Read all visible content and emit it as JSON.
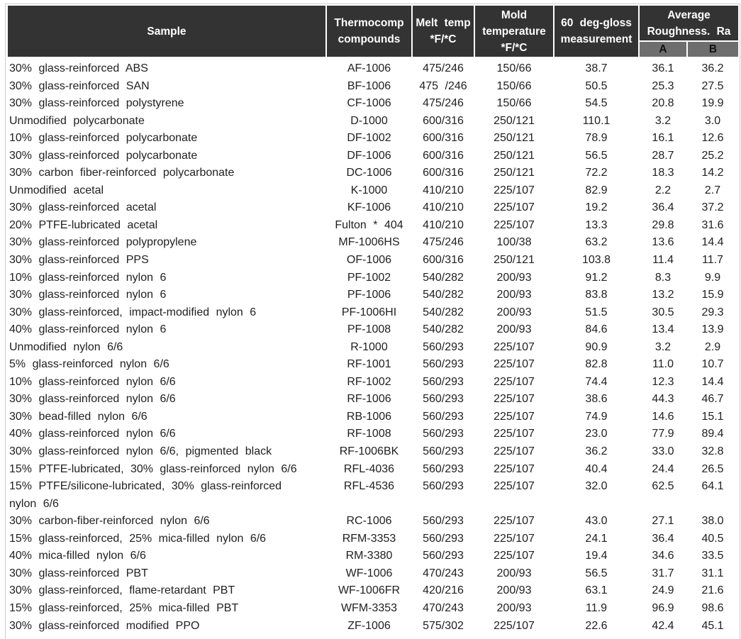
{
  "colors": {
    "header_bg": "#333333",
    "header_text": "#ffffff",
    "subheader_bg": "#6e6e6e",
    "subheader_text": "#111111",
    "body_text": "#212121",
    "table_border": "#cccccc"
  },
  "table": {
    "headers": {
      "sample": "Sample",
      "thermocomp": "Thermocomp\ncompounds",
      "melt_temp": "Melt temp\n*F/*C",
      "mold_temp": "Mold\ntemperature\n*F/*C",
      "gloss": "60 deg-gloss\nmeasurement",
      "roughness": "Average\nRoughness. Ra",
      "roughness_a": "A",
      "roughness_b": "B"
    },
    "rows": [
      [
        "30% glass-reinforced ABS",
        "AF-1006",
        "475/246",
        "150/66",
        "38.7",
        "36.1",
        "36.2"
      ],
      [
        "30% glass-reinforced SAN",
        "BF-1006",
        "475 /246",
        "150/66",
        "50.5",
        "25.3",
        "27.5"
      ],
      [
        "30% glass-reinforced polystyrene",
        "CF-1006",
        "475/246",
        "150/66",
        "54.5",
        "20.8",
        "19.9"
      ],
      [
        "Unmodified polycarbonate",
        "D-1000",
        "600/316",
        "250/121",
        "110.1",
        "3.2",
        "3.0"
      ],
      [
        "10% glass-reinforced polycarbonate",
        "DF-1002",
        "600/316",
        "250/121",
        "78.9",
        "16.1",
        "12.6"
      ],
      [
        "30% glass-reinforced polycarbonate",
        "DF-1006",
        "600/316",
        "250/121",
        "56.5",
        "28.7",
        "25.2"
      ],
      [
        "30% carbon fiber-reinforced polycarbonate",
        "DC-1006",
        "600/316",
        "250/121",
        "72.2",
        "18.3",
        "14.2"
      ],
      [
        "Unmodified acetal",
        "K-1000",
        "410/210",
        "225/107",
        "82.9",
        "2.2",
        "2.7"
      ],
      [
        "30% glass-reinforced acetal",
        "KF-1006",
        "410/210",
        "225/107",
        "19.2",
        "36.4",
        "37.2"
      ],
      [
        "20% PTFE-lubricated acetal",
        "Fulton * 404",
        "410/210",
        "225/107",
        "13.3",
        "29.8",
        "31.6"
      ],
      [
        "30% glass-reinforced polypropylene",
        "MF-1006HS",
        "475/246",
        "100/38",
        "63.2",
        "13.6",
        "14.4"
      ],
      [
        "30% glass-reinforced PPS",
        "OF-1006",
        "600/316",
        "250/121",
        "103.8",
        "11.4",
        "11.7"
      ],
      [
        "10% glass-reinforced nylon 6",
        "PF-1002",
        "540/282",
        "200/93",
        "91.2",
        "8.3",
        "9.9"
      ],
      [
        "30% glass-reinforced nylon 6",
        "PF-1006",
        "540/282",
        "200/93",
        "83.8",
        "13.2",
        "15.9"
      ],
      [
        "30% glass-reinforced, impact-modified nylon 6",
        "PF-1006HI",
        "540/282",
        "200/93",
        "51.5",
        "30.5",
        "29.3"
      ],
      [
        "40% glass-reinforced nylon 6",
        "PF-1008",
        "540/282",
        "200/93",
        "84.6",
        "13.4",
        "13.9"
      ],
      [
        "Unmodified nylon 6/6",
        "R-1000",
        "560/293",
        "225/107",
        "90.9",
        "3.2",
        "2.9"
      ],
      [
        "5% glass-reinforced nylon 6/6",
        "RF-1001",
        "560/293",
        "225/107",
        "82.8",
        "11.0",
        "10.7"
      ],
      [
        "10% glass-reinforced nylon 6/6",
        "RF-1002",
        "560/293",
        "225/107",
        "74.4",
        "12.3",
        "14.4"
      ],
      [
        "30% glass-reinforced nylon 6/6",
        "RF-1006",
        "560/293",
        "225/107",
        "38.6",
        "44.3",
        "46.7"
      ],
      [
        "30% bead-filled nylon 6/6",
        "RB-1006",
        "560/293",
        "225/107",
        "74.9",
        "14.6",
        "15.1"
      ],
      [
        "40% glass-reinforced nylon 6/6",
        "RF-1008",
        "560/293",
        "225/107",
        "23.0",
        "77.9",
        "89.4"
      ],
      [
        "30% glass-reinforced nylon 6/6, pigmented black",
        "RF-1006BK",
        "560/293",
        "225/107",
        "36.2",
        "33.0",
        "32.8"
      ],
      [
        "15% PTFE-lubricated, 30% glass-reinforced nylon 6/6",
        "RFL-4036",
        "560/293",
        "225/107",
        "40.4",
        "24.4",
        "26.5"
      ],
      [
        "15% PTFE/silicone-lubricated, 30% glass-reinforced\nnylon 6/6",
        "RFL-4536",
        "560/293",
        "225/107",
        "32.0",
        "62.5",
        "64.1"
      ],
      [
        "30% carbon-fiber-reinforced nylon 6/6",
        "RC-1006",
        "560/293",
        "225/107",
        "43.0",
        "27.1",
        "38.0"
      ],
      [
        "15% glass-reinforced, 25% mica-filled nylon 6/6",
        "RFM-3353",
        "560/293",
        "225/107",
        "24.1",
        "36.4",
        "40.5"
      ],
      [
        "40% mica-filled nylon 6/6",
        "RM-3380",
        "560/293",
        "225/107",
        "19.4",
        "34.6",
        "33.5"
      ],
      [
        "30% glass-reinforced PBT",
        "WF-1006",
        "470/243",
        "200/93",
        "56.5",
        "31.7",
        "31.1"
      ],
      [
        "30% glass-reinforced, flame-retardant PBT",
        "WF-1006FR",
        "420/216",
        "200/93",
        "63.1",
        "24.9",
        "21.6"
      ],
      [
        "15% glass-reinforced, 25% mica-filled PBT",
        "WFM-3353",
        "470/243",
        "200/93",
        "11.9",
        "96.9",
        "98.6"
      ],
      [
        "30% glass-reinforced modified PPO",
        "ZF-1006",
        "575/302",
        "225/107",
        "22.6",
        "42.4",
        "45.1"
      ]
    ]
  }
}
